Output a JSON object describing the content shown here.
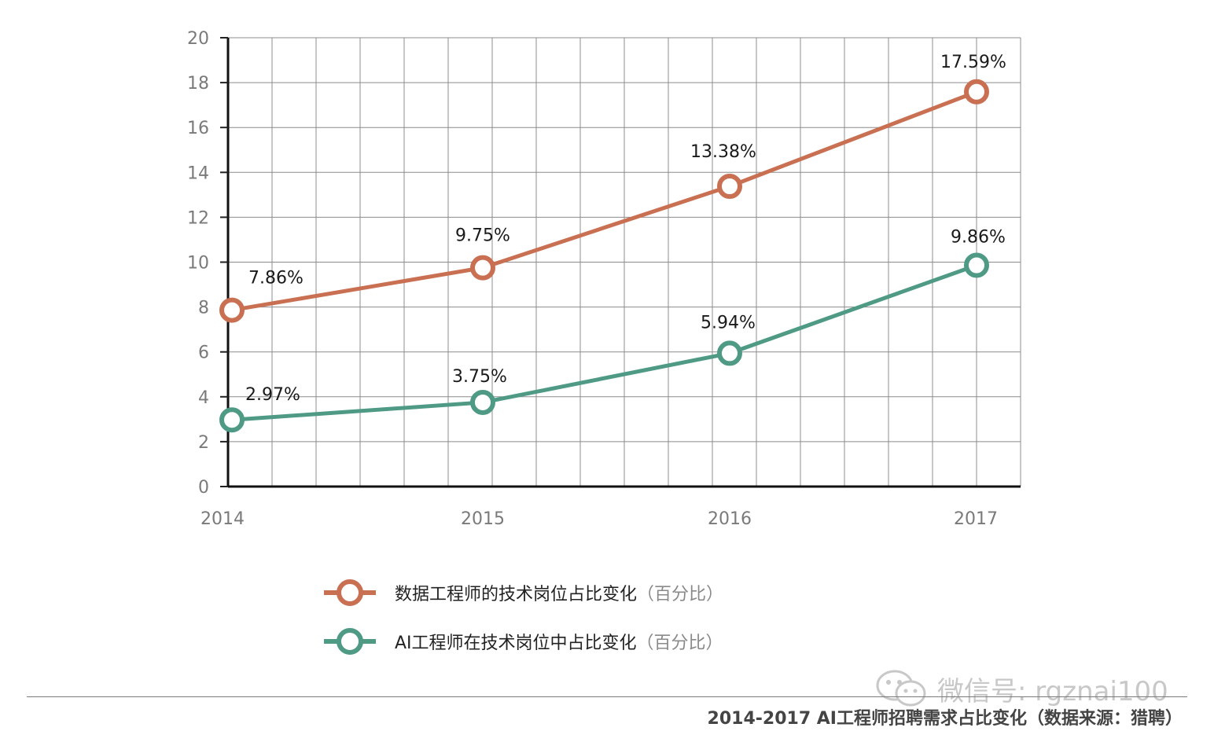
{
  "chart_data": {
    "type": "line",
    "categories": [
      "2014",
      "2015",
      "2016",
      "2017"
    ],
    "x_tick_labels": [
      "2014",
      "2015",
      "2016",
      "2017"
    ],
    "ylim": [
      0,
      20
    ],
    "y_ticks": [
      0,
      2,
      4,
      6,
      8,
      10,
      12,
      14,
      16,
      18,
      20
    ],
    "y_tick_labels": [
      "0",
      "2",
      "4",
      "6",
      "8",
      "10",
      "12",
      "14",
      "16",
      "18",
      "20"
    ],
    "grid": true,
    "series": [
      {
        "name": "数据工程师的技术岗位占比变化",
        "unit": "（百分比）",
        "color": "#c96f52",
        "values": [
          7.86,
          9.75,
          13.38,
          17.59
        ],
        "data_labels": [
          "7.86%",
          "9.75%",
          "13.38%",
          "17.59%"
        ]
      },
      {
        "name": "AI工程师在技术岗位中占比变化",
        "unit": "（百分比）",
        "color": "#4e9a85",
        "values": [
          2.97,
          3.75,
          5.94,
          9.86
        ],
        "data_labels": [
          "2.97%",
          "3.75%",
          "5.94%",
          "9.86%"
        ]
      }
    ],
    "legend_position": "bottom"
  },
  "watermark": "微信号: rgznai100",
  "caption": "2014-2017 AI工程师招聘需求占比变化（数据来源：猎聘）"
}
